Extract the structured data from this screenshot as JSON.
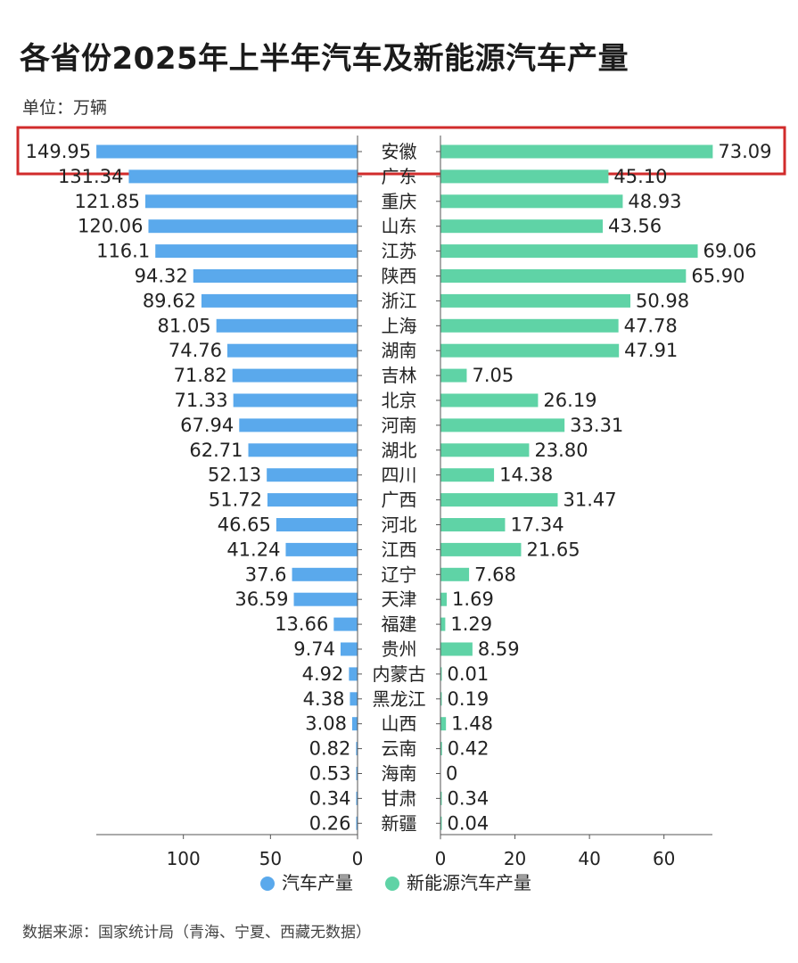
{
  "title": "各省份2025年上半年汽车及新能源汽车产量",
  "unit_label": "单位：万辆",
  "source": "数据来源：国家统计局（青海、宁夏、西藏无数据）",
  "colors": {
    "left_bar": "#5aa9ec",
    "right_bar": "#5fd3a6",
    "highlight": "#d12b2b",
    "axis": "#555555"
  },
  "highlighted_category": "安徽",
  "chart_data": {
    "type": "bar",
    "orientation": "horizontal-butterfly",
    "categories": [
      "安徽",
      "广东",
      "重庆",
      "山东",
      "江苏",
      "陕西",
      "浙江",
      "上海",
      "湖南",
      "吉林",
      "北京",
      "河南",
      "湖北",
      "四川",
      "广西",
      "河北",
      "江西",
      "辽宁",
      "天津",
      "福建",
      "贵州",
      "内蒙古",
      "黑龙江",
      "山西",
      "云南",
      "海南",
      "甘肃",
      "新疆"
    ],
    "series": [
      {
        "name": "汽车产量",
        "side": "left",
        "values": [
          149.95,
          131.34,
          121.85,
          120.06,
          116.1,
          94.32,
          89.62,
          81.05,
          74.76,
          71.82,
          71.33,
          67.94,
          62.71,
          52.13,
          51.72,
          46.65,
          41.24,
          37.6,
          36.59,
          13.66,
          9.74,
          4.92,
          4.38,
          3.08,
          0.82,
          0.53,
          0.34,
          0.26
        ],
        "labels": [
          "149.95",
          "131.34",
          "121.85",
          "120.06",
          "116.1",
          "94.32",
          "89.62",
          "81.05",
          "74.76",
          "71.82",
          "71.33",
          "67.94",
          "62.71",
          "52.13",
          "51.72",
          "46.65",
          "41.24",
          "37.6",
          "36.59",
          "13.66",
          "9.74",
          "4.92",
          "4.38",
          "3.08",
          "0.82",
          "0.53",
          "0.34",
          "0.26"
        ]
      },
      {
        "name": "新能源汽车产量",
        "side": "right",
        "values": [
          73.09,
          45.1,
          48.93,
          43.56,
          69.06,
          65.9,
          50.98,
          47.78,
          47.91,
          7.05,
          26.19,
          33.31,
          23.8,
          14.38,
          31.47,
          17.34,
          21.65,
          7.68,
          1.69,
          1.29,
          8.59,
          0.01,
          0.19,
          1.48,
          0.42,
          0,
          0.34,
          0.04
        ],
        "labels": [
          "73.09",
          "45.10",
          "48.93",
          "43.56",
          "69.06",
          "65.90",
          "50.98",
          "47.78",
          "47.91",
          "7.05",
          "26.19",
          "33.31",
          "23.80",
          "14.38",
          "31.47",
          "17.34",
          "21.65",
          "7.68",
          "1.69",
          "1.29",
          "8.59",
          "0.01",
          "0.19",
          "1.48",
          "0.42",
          "0",
          "0.34",
          "0.04"
        ]
      }
    ],
    "left_axis": {
      "ticks": [
        "100",
        "50",
        "0"
      ],
      "tick_values": [
        100,
        50,
        0
      ],
      "max": 150
    },
    "right_axis": {
      "ticks": [
        "0",
        "20",
        "40",
        "60"
      ],
      "tick_values": [
        0,
        20,
        40,
        60
      ],
      "max": 73
    },
    "legend": [
      {
        "label": "汽车产量",
        "color": "#5aa9ec"
      },
      {
        "label": "新能源汽车产量",
        "color": "#5fd3a6"
      }
    ],
    "legend_position": "bottom-center",
    "grid": false
  }
}
